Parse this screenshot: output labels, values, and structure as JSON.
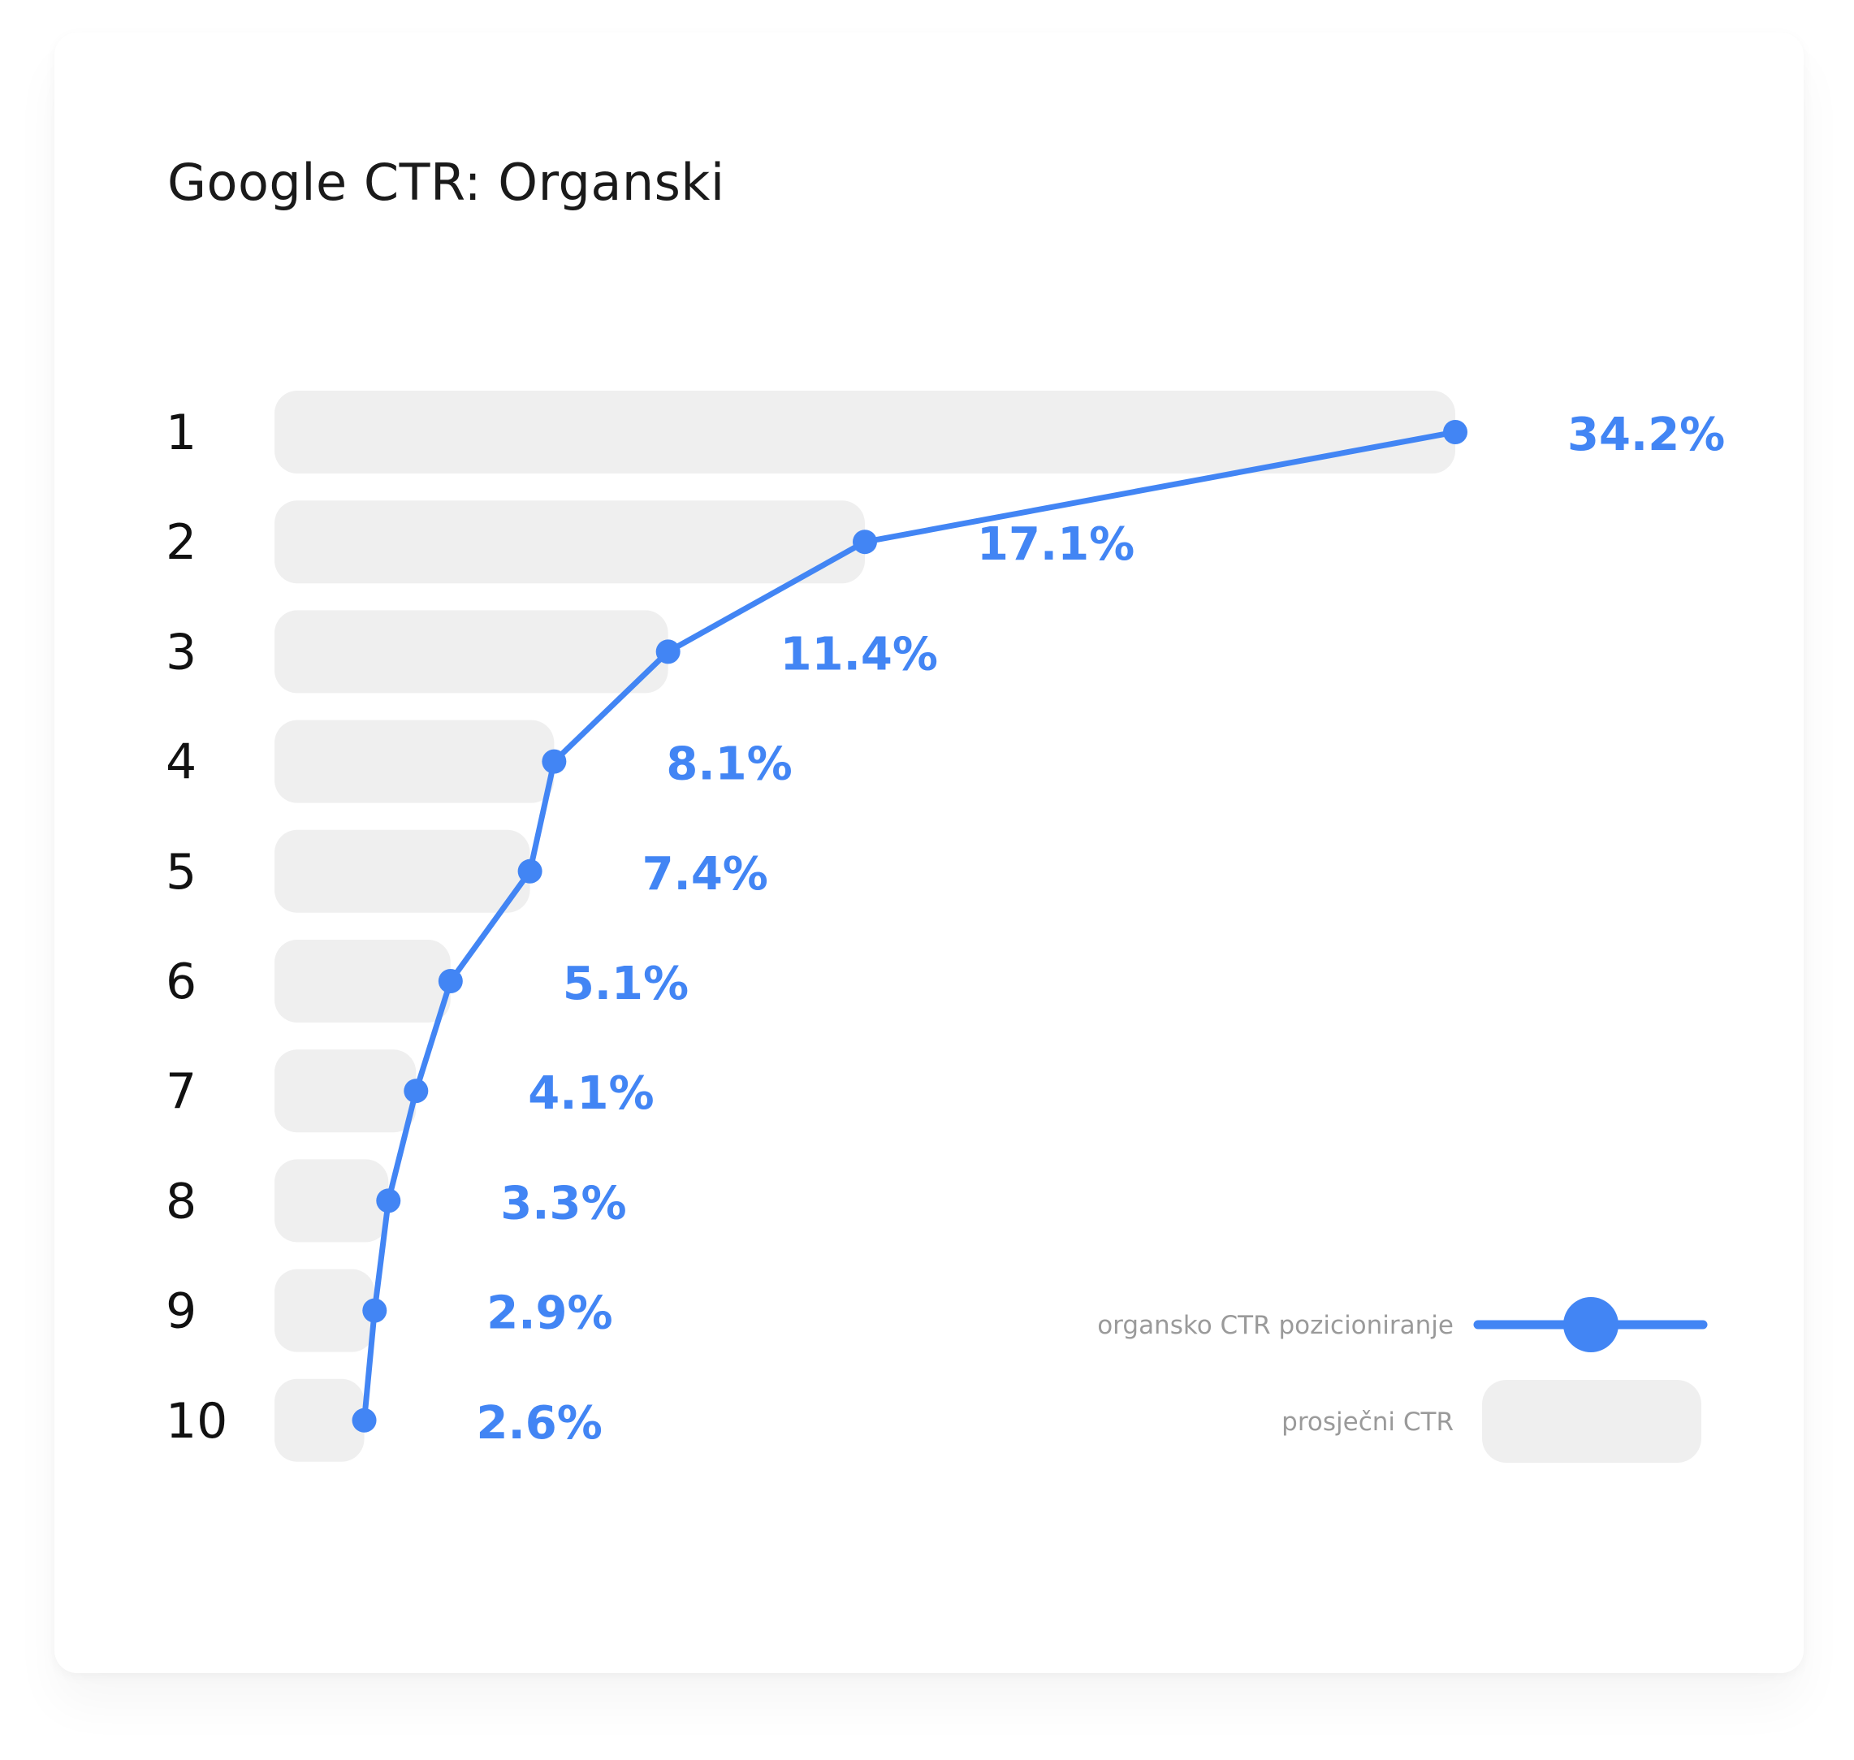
{
  "chart_data": {
    "type": "bar",
    "title": "Google CTR: Organski",
    "categories": [
      "1",
      "2",
      "3",
      "4",
      "5",
      "6",
      "7",
      "8",
      "9",
      "10"
    ],
    "series": [
      {
        "name": "organsko CTR pozicioniranje",
        "kind": "line",
        "values": [
          34.2,
          17.1,
          11.4,
          8.1,
          7.4,
          5.1,
          4.1,
          3.3,
          2.9,
          2.6
        ],
        "labels": [
          "34.2%",
          "17.1%",
          "11.4%",
          "8.1%",
          "7.4%",
          "5.1%",
          "4.1%",
          "3.3%",
          "2.9%",
          "2.6%"
        ],
        "color": "#4285f4"
      },
      {
        "name": "prosječni CTR",
        "kind": "bar",
        "values": [
          34.2,
          17.1,
          11.4,
          8.1,
          7.4,
          5.1,
          4.1,
          3.3,
          2.9,
          2.6
        ],
        "color": "#efefef"
      }
    ],
    "xlim": [
      0,
      34.2
    ],
    "grid": false,
    "legend_position": "bottom-right"
  }
}
